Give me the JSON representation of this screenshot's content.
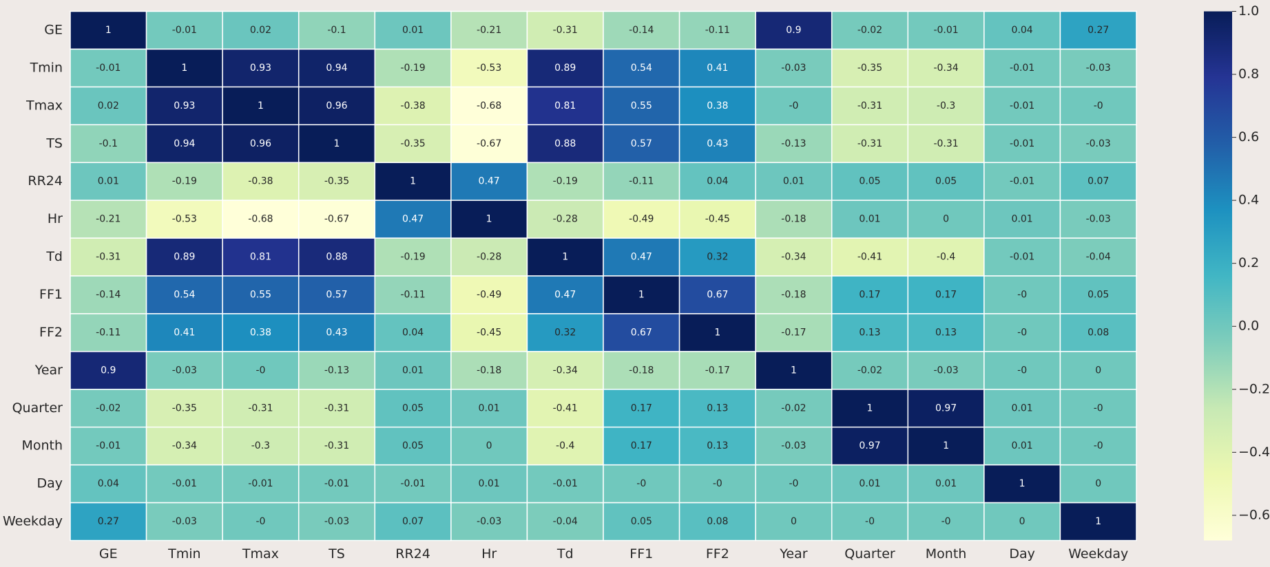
{
  "chart_data": {
    "type": "heatmap",
    "x_categories": [
      "GE",
      "Tmin",
      "Tmax",
      "TS",
      "RR24",
      "Hr",
      "Td",
      "FF1",
      "FF2",
      "Year",
      "Quarter",
      "Month",
      "Day",
      "Weekday"
    ],
    "y_categories": [
      "GE",
      "Tmin",
      "Tmax",
      "TS",
      "RR24",
      "Hr",
      "Td",
      "FF1",
      "FF2",
      "Year",
      "Quarter",
      "Month",
      "Day",
      "Weekday"
    ],
    "values": [
      [
        1,
        -0.01,
        0.02,
        -0.1,
        0.01,
        -0.21,
        -0.31,
        -0.14,
        -0.11,
        0.9,
        -0.02,
        -0.01,
        0.04,
        0.27
      ],
      [
        -0.01,
        1,
        0.93,
        0.94,
        -0.19,
        -0.53,
        0.89,
        0.54,
        0.41,
        -0.03,
        -0.35,
        -0.34,
        -0.01,
        -0.03
      ],
      [
        0.02,
        0.93,
        1,
        0.96,
        -0.38,
        -0.68,
        0.81,
        0.55,
        0.38,
        0,
        -0.31,
        -0.3,
        -0.01,
        0
      ],
      [
        -0.1,
        0.94,
        0.96,
        1,
        -0.35,
        -0.67,
        0.88,
        0.57,
        0.43,
        -0.13,
        -0.31,
        -0.31,
        -0.01,
        -0.03
      ],
      [
        0.01,
        -0.19,
        -0.38,
        -0.35,
        1,
        0.47,
        -0.19,
        -0.11,
        0.04,
        0.01,
        0.05,
        0.05,
        -0.01,
        0.07
      ],
      [
        -0.21,
        -0.53,
        -0.68,
        -0.67,
        0.47,
        1,
        -0.28,
        -0.49,
        -0.45,
        -0.18,
        0.01,
        0,
        0.01,
        -0.03
      ],
      [
        -0.31,
        0.89,
        0.81,
        0.88,
        -0.19,
        -0.28,
        1,
        0.47,
        0.32,
        -0.34,
        -0.41,
        -0.4,
        -0.01,
        -0.04
      ],
      [
        -0.14,
        0.54,
        0.55,
        0.57,
        -0.11,
        -0.49,
        0.47,
        1,
        0.67,
        -0.18,
        0.17,
        0.17,
        0,
        0.05
      ],
      [
        -0.11,
        0.41,
        0.38,
        0.43,
        0.04,
        -0.45,
        0.32,
        0.67,
        1,
        -0.17,
        0.13,
        0.13,
        0,
        0.08
      ],
      [
        0.9,
        -0.03,
        0,
        -0.13,
        0.01,
        -0.18,
        -0.34,
        -0.18,
        -0.17,
        1,
        -0.02,
        -0.03,
        0,
        0
      ],
      [
        -0.02,
        -0.35,
        -0.31,
        -0.31,
        0.05,
        0.01,
        -0.41,
        0.17,
        0.13,
        -0.02,
        1,
        0.97,
        0.01,
        0
      ],
      [
        -0.01,
        -0.34,
        -0.3,
        -0.31,
        0.05,
        0,
        -0.4,
        0.17,
        0.13,
        -0.03,
        0.97,
        1,
        0.01,
        0
      ],
      [
        0.04,
        -0.01,
        -0.01,
        -0.01,
        -0.01,
        0.01,
        -0.01,
        0,
        0,
        0,
        0.01,
        0.01,
        1,
        0
      ],
      [
        0.27,
        -0.03,
        0,
        -0.03,
        0.07,
        -0.03,
        -0.04,
        0.05,
        0.08,
        0,
        0,
        0,
        0,
        1
      ]
    ],
    "value_labels": [
      [
        "1",
        "-0.01",
        "0.02",
        "-0.1",
        "0.01",
        "-0.21",
        "-0.31",
        "-0.14",
        "-0.11",
        "0.9",
        "-0.02",
        "-0.01",
        "0.04",
        "0.27"
      ],
      [
        "-0.01",
        "1",
        "0.93",
        "0.94",
        "-0.19",
        "-0.53",
        "0.89",
        "0.54",
        "0.41",
        "-0.03",
        "-0.35",
        "-0.34",
        "-0.01",
        "-0.03"
      ],
      [
        "0.02",
        "0.93",
        "1",
        "0.96",
        "-0.38",
        "-0.68",
        "0.81",
        "0.55",
        "0.38",
        "-0",
        "-0.31",
        "-0.3",
        "-0.01",
        "-0"
      ],
      [
        "-0.1",
        "0.94",
        "0.96",
        "1",
        "-0.35",
        "-0.67",
        "0.88",
        "0.57",
        "0.43",
        "-0.13",
        "-0.31",
        "-0.31",
        "-0.01",
        "-0.03"
      ],
      [
        "0.01",
        "-0.19",
        "-0.38",
        "-0.35",
        "1",
        "0.47",
        "-0.19",
        "-0.11",
        "0.04",
        "0.01",
        "0.05",
        "0.05",
        "-0.01",
        "0.07"
      ],
      [
        "-0.21",
        "-0.53",
        "-0.68",
        "-0.67",
        "0.47",
        "1",
        "-0.28",
        "-0.49",
        "-0.45",
        "-0.18",
        "0.01",
        "0",
        "0.01",
        "-0.03"
      ],
      [
        "-0.31",
        "0.89",
        "0.81",
        "0.88",
        "-0.19",
        "-0.28",
        "1",
        "0.47",
        "0.32",
        "-0.34",
        "-0.41",
        "-0.4",
        "-0.01",
        "-0.04"
      ],
      [
        "-0.14",
        "0.54",
        "0.55",
        "0.57",
        "-0.11",
        "-0.49",
        "0.47",
        "1",
        "0.67",
        "-0.18",
        "0.17",
        "0.17",
        "-0",
        "0.05"
      ],
      [
        "-0.11",
        "0.41",
        "0.38",
        "0.43",
        "0.04",
        "-0.45",
        "0.32",
        "0.67",
        "1",
        "-0.17",
        "0.13",
        "0.13",
        "-0",
        "0.08"
      ],
      [
        "0.9",
        "-0.03",
        "-0",
        "-0.13",
        "0.01",
        "-0.18",
        "-0.34",
        "-0.18",
        "-0.17",
        "1",
        "-0.02",
        "-0.03",
        "-0",
        "0"
      ],
      [
        "-0.02",
        "-0.35",
        "-0.31",
        "-0.31",
        "0.05",
        "0.01",
        "-0.41",
        "0.17",
        "0.13",
        "-0.02",
        "1",
        "0.97",
        "0.01",
        "-0"
      ],
      [
        "-0.01",
        "-0.34",
        "-0.3",
        "-0.31",
        "0.05",
        "0",
        "-0.4",
        "0.17",
        "0.13",
        "-0.03",
        "0.97",
        "1",
        "0.01",
        "-0"
      ],
      [
        "0.04",
        "-0.01",
        "-0.01",
        "-0.01",
        "-0.01",
        "0.01",
        "-0.01",
        "-0",
        "-0",
        "-0",
        "0.01",
        "0.01",
        "1",
        "0"
      ],
      [
        "0.27",
        "-0.03",
        "-0",
        "-0.03",
        "0.07",
        "-0.03",
        "-0.04",
        "0.05",
        "0.08",
        "0",
        "-0",
        "-0",
        "0",
        "1"
      ]
    ],
    "colorscale": [
      "#ffffd9",
      "#edf8b1",
      "#c7e9b4",
      "#7fcdbb",
      "#41b6c4",
      "#1d91c0",
      "#225ea8",
      "#253494",
      "#081d58"
    ],
    "zlim": [
      -0.68,
      1
    ],
    "zticks": [
      {
        "value": 1,
        "label": "1.0"
      },
      {
        "value": 0.8,
        "label": "0.8"
      },
      {
        "value": 0.6,
        "label": "0.6"
      },
      {
        "value": 0.4,
        "label": "0.4"
      },
      {
        "value": 0.2,
        "label": "0.2"
      },
      {
        "value": 0,
        "label": "0.0"
      },
      {
        "value": -0.2,
        "label": "−0.2"
      },
      {
        "value": -0.4,
        "label": "−0.4"
      },
      {
        "value": -0.6,
        "label": "−0.6"
      }
    ]
  }
}
